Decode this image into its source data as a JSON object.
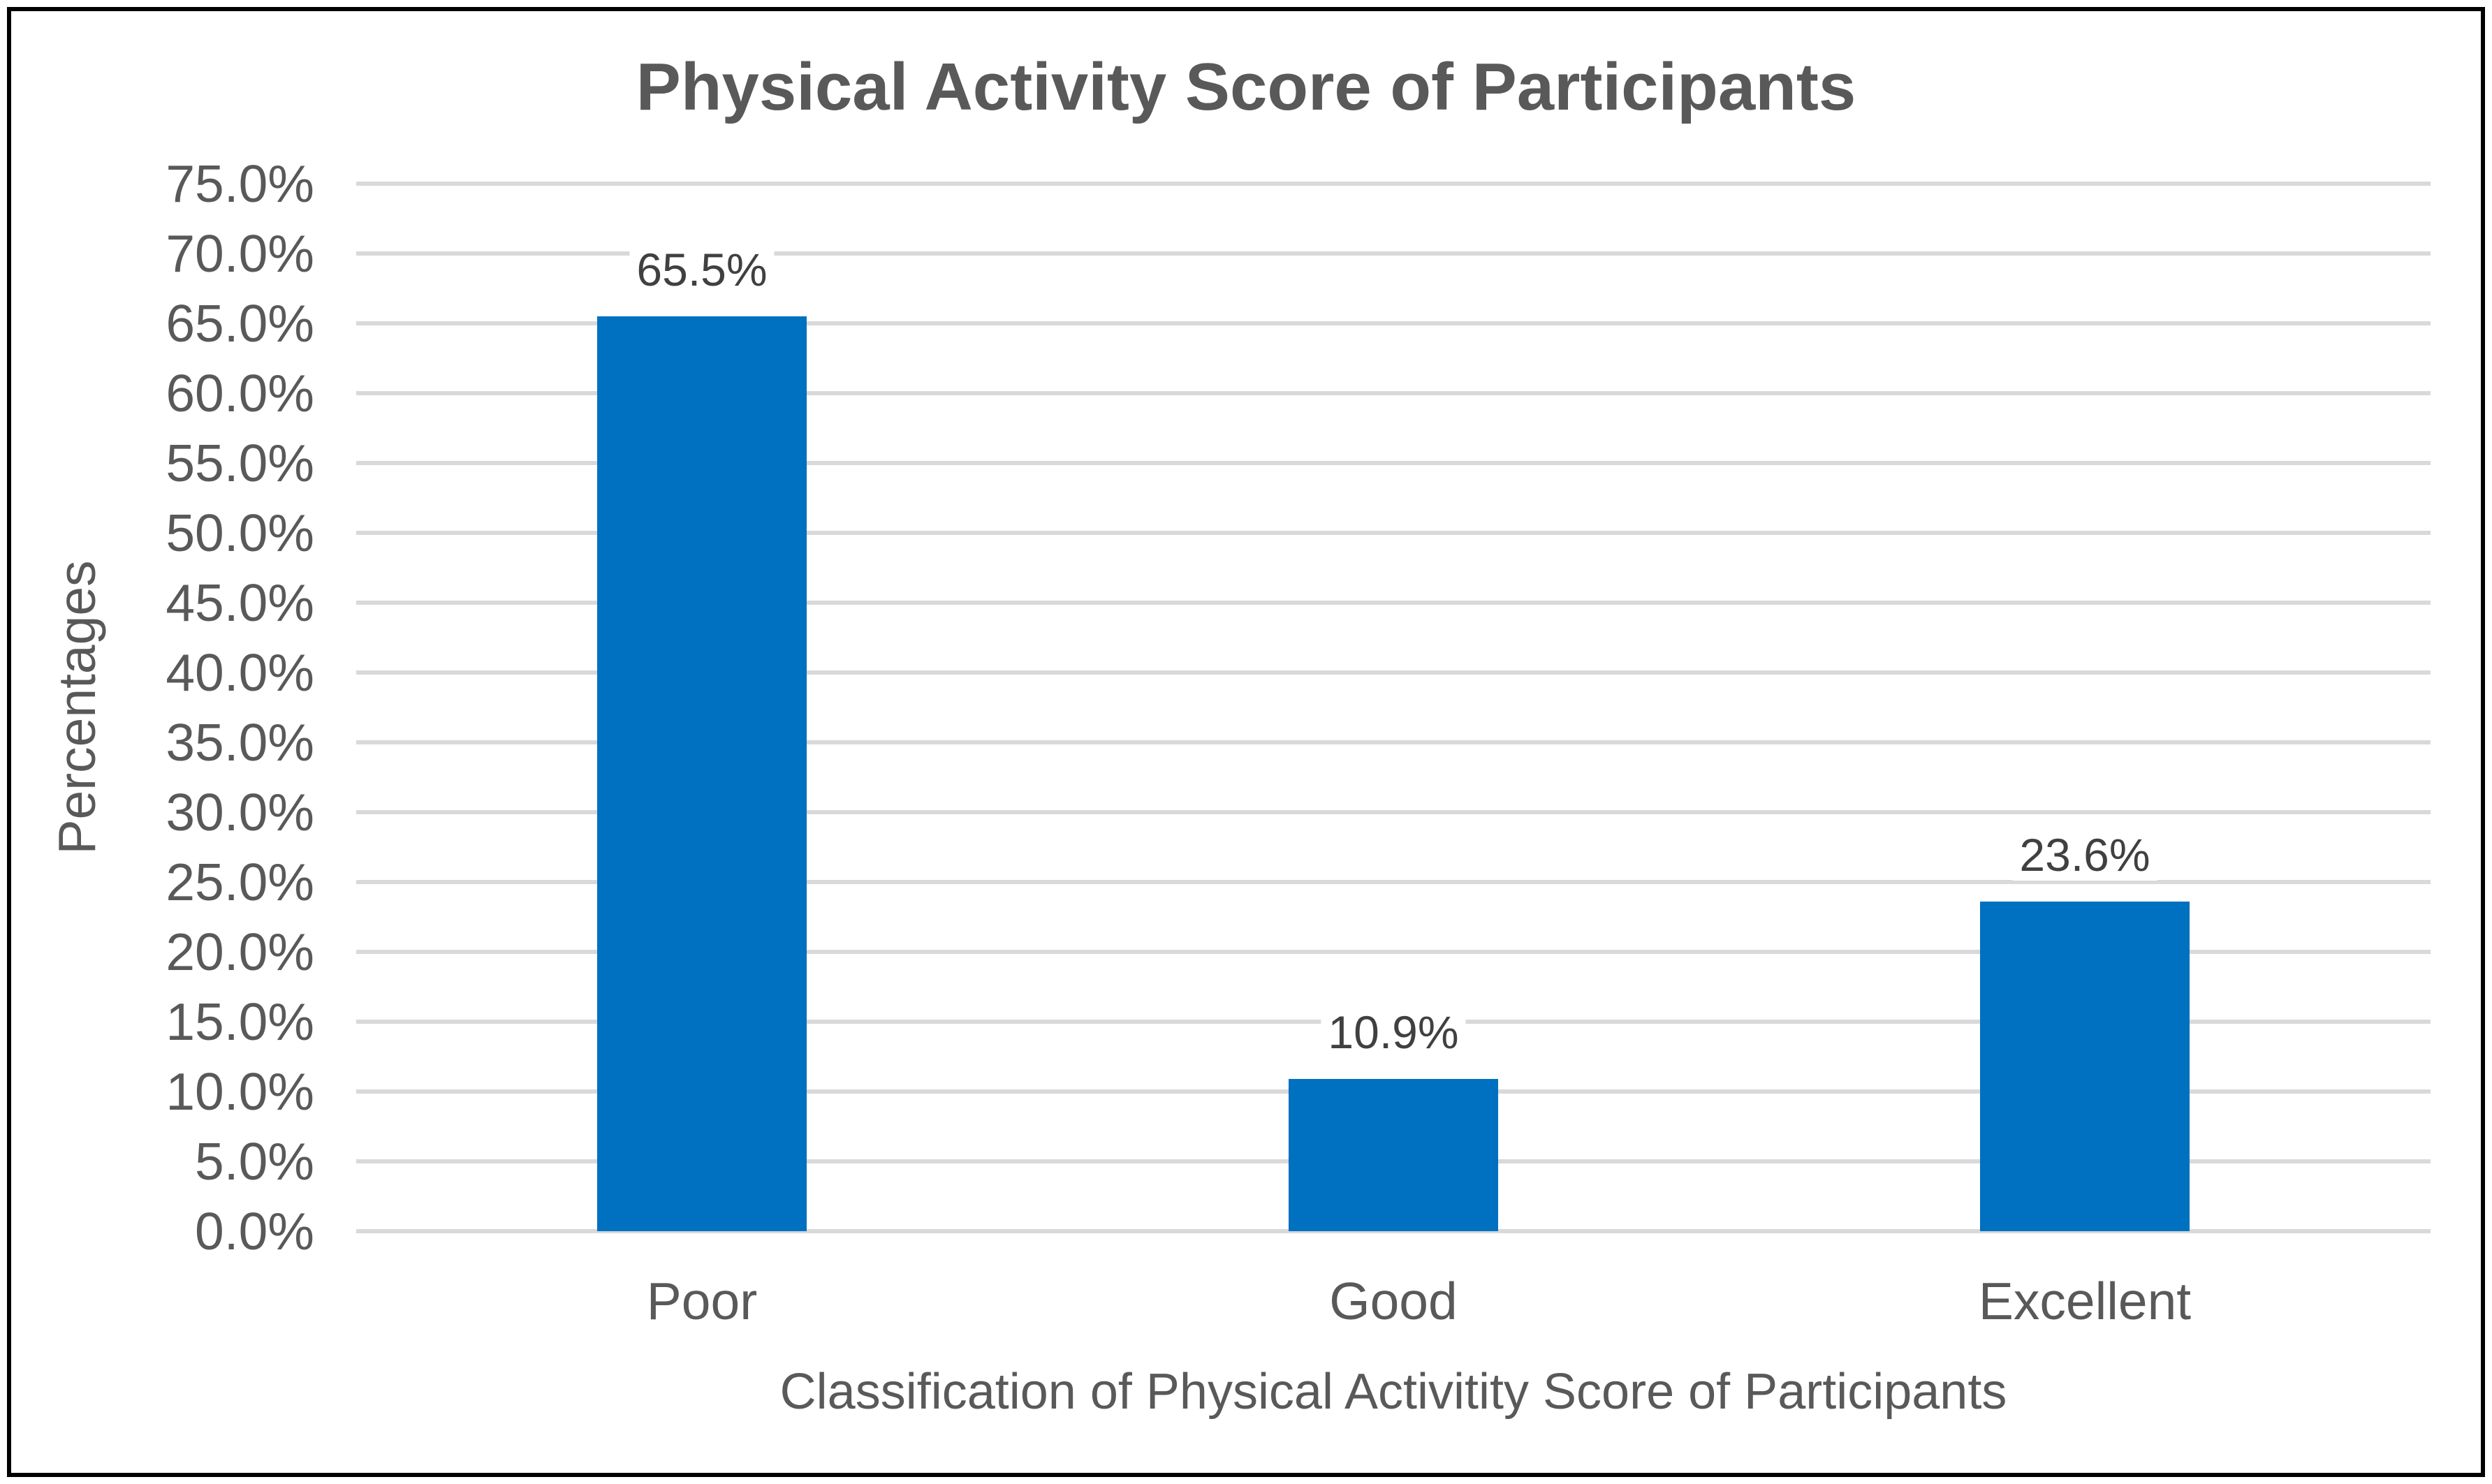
{
  "chart_data": {
    "type": "bar",
    "title": "Physical Activity Score of Participants",
    "xlabel": "Classification of Physical Activitity Score of Participants",
    "ylabel": "Percentages",
    "categories": [
      "Poor",
      "Good",
      "Excellent"
    ],
    "values": [
      65.5,
      10.9,
      23.6
    ],
    "data_labels": [
      "65.5%",
      "10.9%",
      "23.6%"
    ],
    "ylim": [
      0,
      75
    ],
    "ytick_step": 5,
    "ytick_labels": [
      "0.0%",
      "5.0%",
      "10.0%",
      "15.0%",
      "20.0%",
      "25.0%",
      "30.0%",
      "35.0%",
      "40.0%",
      "45.0%",
      "50.0%",
      "55.0%",
      "60.0%",
      "65.0%",
      "70.0%",
      "75.0%"
    ],
    "grid": "horizontal-only",
    "legend": "none",
    "colors": {
      "bar": "#0070C0",
      "gridline": "#D9D9D9",
      "axis_text": "#595959",
      "title_text": "#595959",
      "data_label_text": "#404040",
      "border": "#000000",
      "background": "#FFFFFF"
    }
  }
}
